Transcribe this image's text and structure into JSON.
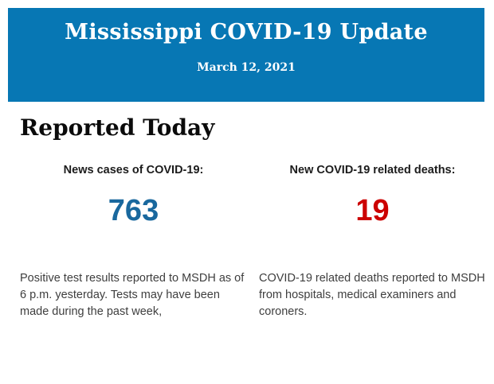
{
  "header": {
    "title": "Mississippi COVID-19 Update",
    "date": "March 12, 2021",
    "background_color": "#0777b4"
  },
  "section": {
    "heading": "Reported Today"
  },
  "stats": {
    "cases": {
      "label": "News cases of COVID-19:",
      "value": "763",
      "value_color": "#19689e",
      "description": "Positive test results reported to MSDH as of 6 p.m. yesterday. Tests may have been made during the past week,"
    },
    "deaths": {
      "label": "New COVID-19 related deaths:",
      "value": "19",
      "value_color": "#cc0000",
      "description": "COVID-19 related deaths reported to MSDH from hospitals, medical examiners and coroners."
    }
  }
}
